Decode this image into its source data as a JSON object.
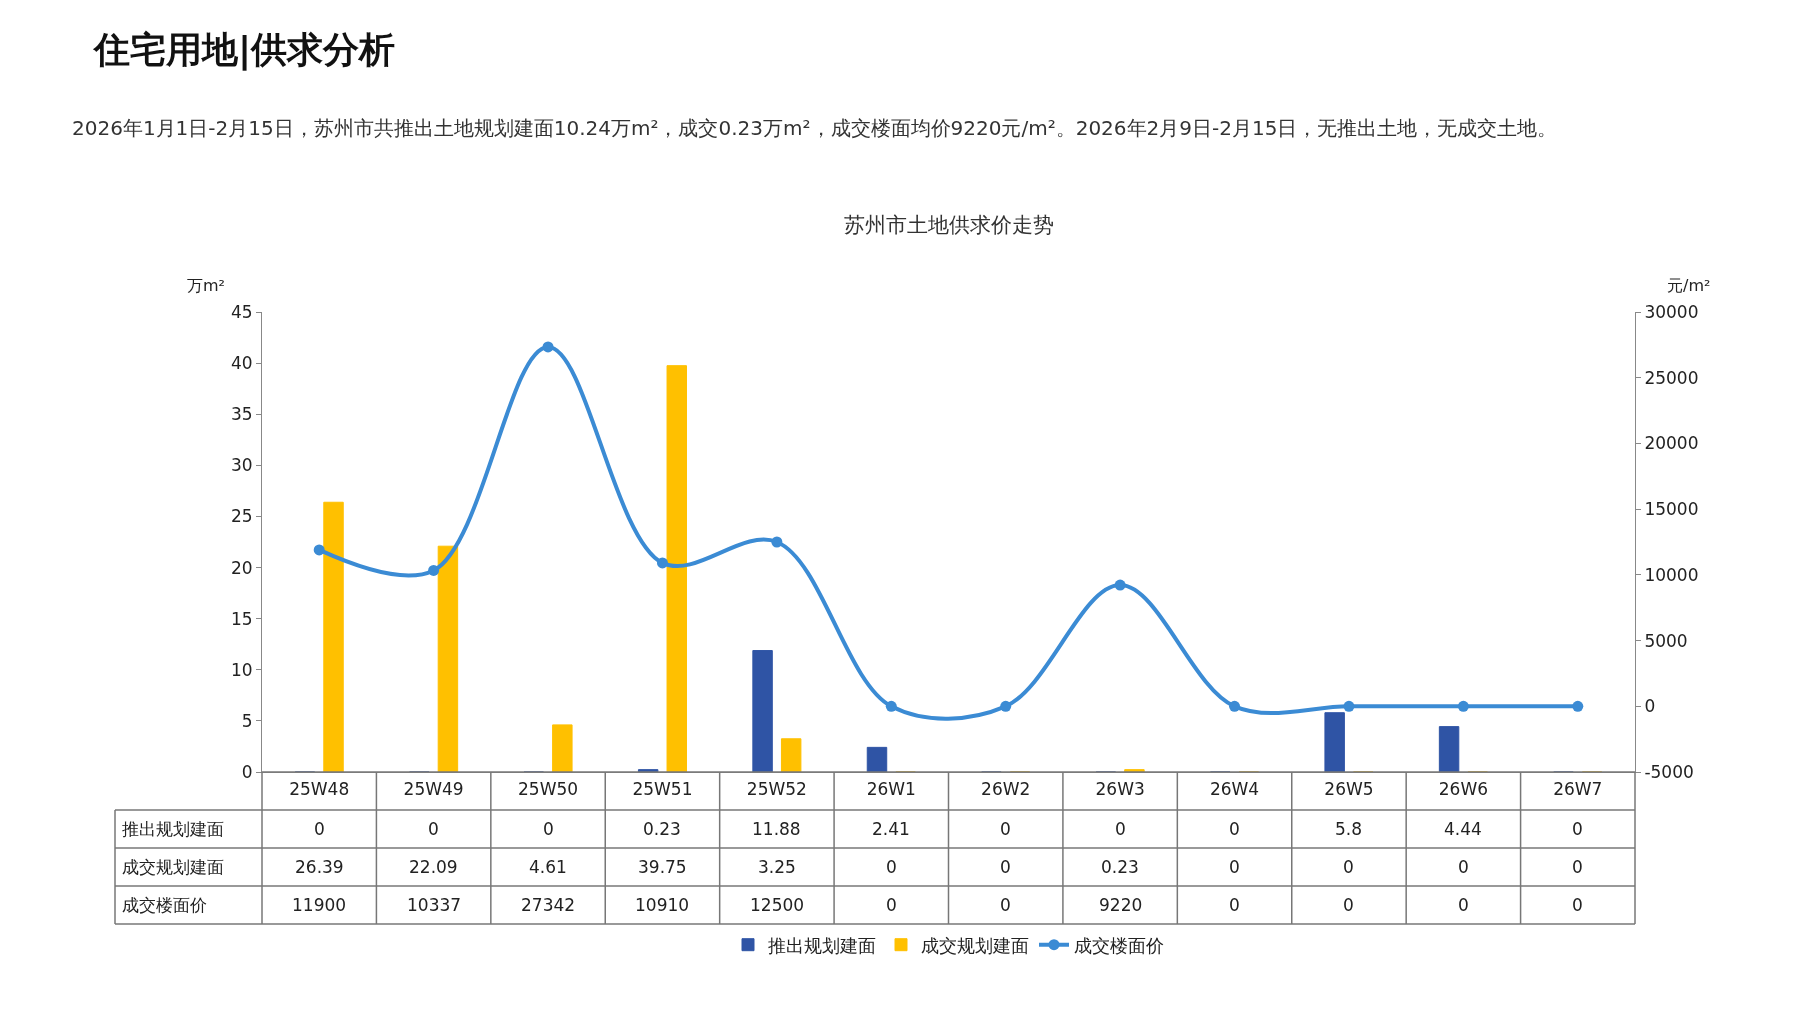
{
  "chart_data": {
    "type": "bar",
    "title": "苏州市土地供求价走势",
    "annotations": [
      "住宅用地|供求分析",
      "2026年1月1日-2月15日，苏州市共推出土地规划建面10.24万m²，成交0.23万m²，成交楼面均价9220元/m²。2026年2月9日-2月15日，无推出土地，无成交土地。"
    ],
    "ylabel": "万m²",
    "y2label": "元/m²",
    "categories": [
      "25W48",
      "25W49",
      "25W50",
      "25W51",
      "25W52",
      "26W1",
      "26W2",
      "26W3",
      "26W4",
      "26W5",
      "26W6",
      "26W7"
    ],
    "series": [
      {
        "name": "推出规划建面",
        "color": "#2f54a5",
        "values": [
          0,
          0,
          0,
          0.23,
          11.88,
          2.41,
          0,
          0,
          0,
          5.8,
          4.44,
          0
        ]
      },
      {
        "name": "成交规划建面",
        "color": "#ffc000",
        "values": [
          26.39,
          22.09,
          4.61,
          39.75,
          3.25,
          0,
          0,
          0.23,
          0,
          0,
          0,
          0
        ]
      },
      {
        "name": "成交楼面价",
        "type": "line",
        "axis": "y2",
        "color": "#3b8bd4",
        "marker": "circle",
        "values": [
          11900,
          10337,
          27342,
          10910,
          12500,
          0,
          0,
          9220,
          0,
          0,
          0,
          0
        ]
      }
    ],
    "ylim": [
      0,
      45
    ],
    "yticks": [
      0,
      5,
      10,
      15,
      20,
      25,
      30,
      35,
      40,
      45
    ],
    "y2lim": [
      -5000,
      30000
    ],
    "y2ticks": [
      -5000,
      0,
      5000,
      10000,
      15000,
      20000,
      25000,
      30000
    ],
    "data_labels": true,
    "legend": "bottom"
  }
}
